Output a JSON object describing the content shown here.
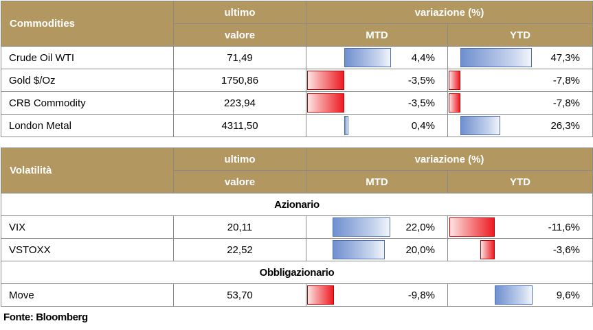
{
  "commodities": {
    "header": {
      "name": "Commodities",
      "ultimo": "ultimo",
      "valore": "valore",
      "variazione": "variazione (%)",
      "mtd": "MTD",
      "ytd": "YTD"
    },
    "rows": [
      {
        "name": "Crude Oil WTI",
        "value": "71,49",
        "mtd": "4,4%",
        "ytd": "47,3%",
        "mtd_num": 4.4,
        "ytd_num": 47.3
      },
      {
        "name": "Gold $/Oz",
        "value": "1750,86",
        "mtd": "-3,5%",
        "ytd": "-7,8%",
        "mtd_num": -3.5,
        "ytd_num": -7.8
      },
      {
        "name": "CRB Commodity",
        "value": "223,94",
        "mtd": "-3,5%",
        "ytd": "-7,8%",
        "mtd_num": -3.5,
        "ytd_num": -7.8
      },
      {
        "name": "London Metal",
        "value": "4311,50",
        "mtd": "0,4%",
        "ytd": "26,3%",
        "mtd_num": 0.4,
        "ytd_num": 26.3
      }
    ]
  },
  "volatilita": {
    "header": {
      "name": "Volatilità",
      "ultimo": "ultimo",
      "valore": "valore",
      "variazione": "variazione (%)",
      "mtd": "MTD",
      "ytd": "YTD"
    },
    "section_azionario": "Azionario",
    "rows_azionario": [
      {
        "name": "VIX",
        "value": "20,11",
        "mtd": "22,0%",
        "ytd": "-11,6%",
        "mtd_num": 22.0,
        "ytd_num": -11.6
      },
      {
        "name": "VSTOXX",
        "value": "22,52",
        "mtd": "20,0%",
        "ytd": "-3,6%",
        "mtd_num": 20.0,
        "ytd_num": -3.6
      }
    ],
    "section_obbligazionario": "Obbligazionario",
    "rows_obbligazionario": [
      {
        "name": "Move",
        "value": "53,70",
        "mtd": "-9,8%",
        "ytd": "9,6%",
        "mtd_num": -9.8,
        "ytd_num": 9.6
      }
    ]
  },
  "footer": "Fonte: Bloomberg",
  "colors": {
    "header_bg": "#b29761",
    "positive_bar": "#6f8fcf",
    "negative_bar": "#ee1b22"
  }
}
